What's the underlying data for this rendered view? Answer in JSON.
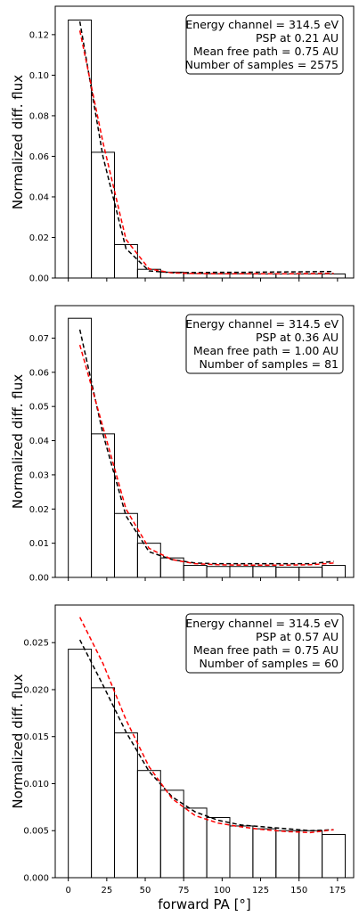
{
  "chart_data": [
    {
      "type": "bar",
      "bin_edges": [
        0,
        15,
        30,
        45,
        60,
        75,
        90,
        105,
        120,
        135,
        150,
        165,
        180
      ],
      "values": [
        0.1272,
        0.062,
        0.0165,
        0.0043,
        0.0029,
        0.0022,
        0.0021,
        0.0021,
        0.002,
        0.002,
        0.002,
        0.002
      ],
      "ylabel": "Normalized diff. flux",
      "ylim": [
        0,
        0.134
      ],
      "yticks": [
        "0.00",
        "0.02",
        "0.04",
        "0.06",
        "0.08",
        "0.10",
        "0.12"
      ],
      "ytick_values": [
        0,
        0.02,
        0.04,
        0.06,
        0.08,
        0.1,
        0.12
      ],
      "annotation": [
        "Energy channel = 314.5 eV",
        "PSP at 0.21 AU",
        "Mean free path = 0.75 AU",
        "Number of samples = 2575"
      ],
      "series": [
        {
          "style": "dashed",
          "color": "#000000",
          "x": [
            7.5,
            22.5,
            37.5,
            52.5,
            67.5,
            82.5,
            97.5,
            112.5,
            127.5,
            142.5,
            157.5,
            172.5
          ],
          "values": [
            0.1265,
            0.06,
            0.0145,
            0.0035,
            0.0026,
            0.0027,
            0.0028,
            0.0028,
            0.0029,
            0.003,
            0.0031,
            0.0032
          ]
        },
        {
          "style": "dashed",
          "color": "#ff0000",
          "x": [
            7.5,
            22.5,
            37.5,
            52.5,
            67.5,
            82.5,
            97.5,
            112.5,
            127.5,
            142.5,
            157.5,
            172.5
          ],
          "values": [
            0.122,
            0.067,
            0.019,
            0.0045,
            0.0025,
            0.0022,
            0.0021,
            0.0021,
            0.0021,
            0.0021,
            0.0022,
            0.0023
          ]
        }
      ]
    },
    {
      "type": "bar",
      "bin_edges": [
        0,
        15,
        30,
        45,
        60,
        75,
        90,
        105,
        120,
        135,
        150,
        165,
        180
      ],
      "values": [
        0.0758,
        0.042,
        0.0187,
        0.01,
        0.0057,
        0.0035,
        0.0032,
        0.0032,
        0.0032,
        0.003,
        0.003,
        0.0035
      ],
      "ylabel": "Normalized diff. flux",
      "ylim": [
        0,
        0.0795
      ],
      "yticks": [
        "0.00",
        "0.01",
        "0.02",
        "0.03",
        "0.04",
        "0.05",
        "0.06",
        "0.07"
      ],
      "ytick_values": [
        0,
        0.01,
        0.02,
        0.03,
        0.04,
        0.05,
        0.06,
        0.07
      ],
      "annotation": [
        "Energy channel = 314.5 eV",
        "PSP at 0.36 AU",
        "Mean free path = 1.00 AU",
        "Number of samples = 81"
      ],
      "series": [
        {
          "style": "dashed",
          "color": "#000000",
          "x": [
            7.5,
            22.5,
            37.5,
            52.5,
            67.5,
            82.5,
            97.5,
            112.5,
            127.5,
            142.5,
            157.5,
            172.5
          ],
          "values": [
            0.0725,
            0.042,
            0.018,
            0.0075,
            0.0052,
            0.0042,
            0.004,
            0.004,
            0.004,
            0.004,
            0.004,
            0.0047
          ]
        },
        {
          "style": "dashed",
          "color": "#ff0000",
          "x": [
            7.5,
            22.5,
            37.5,
            52.5,
            67.5,
            82.5,
            97.5,
            112.5,
            127.5,
            142.5,
            157.5,
            172.5
          ],
          "values": [
            0.068,
            0.044,
            0.02,
            0.0085,
            0.0052,
            0.004,
            0.0037,
            0.0036,
            0.0036,
            0.0036,
            0.0037,
            0.0042
          ]
        }
      ]
    },
    {
      "type": "bar",
      "bin_edges": [
        0,
        15,
        30,
        45,
        60,
        75,
        90,
        105,
        120,
        135,
        150,
        165,
        180
      ],
      "values": [
        0.0243,
        0.0202,
        0.0154,
        0.0114,
        0.0093,
        0.0074,
        0.0064,
        0.0055,
        0.0052,
        0.005,
        0.005,
        0.0046
      ],
      "ylabel": "Normalized diff. flux",
      "xlabel": "forward PA [°]",
      "xticks": [
        "0",
        "25",
        "50",
        "75",
        "100",
        "125",
        "150",
        "175"
      ],
      "xtick_values": [
        0,
        25,
        50,
        75,
        100,
        125,
        150,
        175
      ],
      "ylim": [
        0,
        0.029
      ],
      "yticks": [
        "0.000",
        "0.005",
        "0.010",
        "0.015",
        "0.020",
        "0.025"
      ],
      "ytick_values": [
        0,
        0.005,
        0.01,
        0.015,
        0.02,
        0.025
      ],
      "annotation": [
        "Energy channel = 314.5 eV",
        "PSP at 0.57 AU",
        "Mean free path = 0.75 AU",
        "Number of samples = 60"
      ],
      "series": [
        {
          "style": "dashed",
          "color": "#000000",
          "x": [
            7.5,
            22.5,
            37.5,
            52.5,
            67.5,
            82.5,
            97.5,
            112.5,
            127.5,
            142.5,
            157.5,
            172.5
          ],
          "values": [
            0.0253,
            0.0205,
            0.0155,
            0.0113,
            0.0086,
            0.007,
            0.0061,
            0.0056,
            0.0054,
            0.0052,
            0.005,
            0.0051
          ]
        },
        {
          "style": "dashed",
          "color": "#ff0000",
          "x": [
            7.5,
            22.5,
            37.5,
            52.5,
            67.5,
            82.5,
            97.5,
            112.5,
            127.5,
            142.5,
            157.5,
            172.5
          ],
          "values": [
            0.0277,
            0.0228,
            0.0168,
            0.0118,
            0.0084,
            0.0066,
            0.0058,
            0.0054,
            0.0051,
            0.0049,
            0.0048,
            0.0051
          ]
        }
      ]
    }
  ]
}
